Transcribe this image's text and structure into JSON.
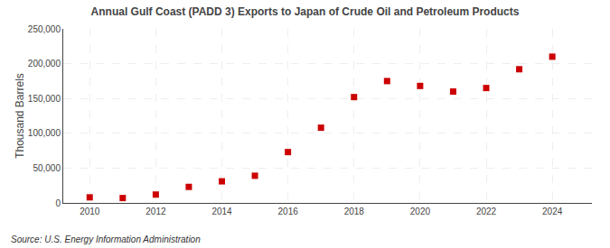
{
  "chart_data": {
    "type": "scatter",
    "title": "Annual Gulf Coast (PADD 3) Exports to Japan of Crude Oil and Petroleum Products",
    "ylabel": "Thousand Barrels",
    "annotations": [
      "Source: U.S. Energy Information Administration"
    ],
    "x": [
      2010,
      2011,
      2012,
      2013,
      2014,
      2015,
      2016,
      2017,
      2018,
      2019,
      2020,
      2021,
      2022,
      2023,
      2024
    ],
    "values": [
      8000,
      7000,
      12000,
      23000,
      31000,
      39000,
      73000,
      108000,
      152000,
      175000,
      168000,
      160000,
      165000,
      192000,
      210000
    ],
    "color": "#cc0000",
    "marker": "square",
    "xlim": [
      2009.2,
      2025.2
    ],
    "xticks": [
      2010,
      2012,
      2014,
      2016,
      2018,
      2020,
      2022,
      2024
    ],
    "ylim": [
      0,
      250000
    ],
    "yticks": [
      0,
      {
        "value": 50000,
        "label": "50,000"
      },
      {
        "value": 100000,
        "label": "100,000"
      },
      {
        "value": 150000,
        "label": "150,000"
      },
      {
        "value": 200000,
        "label": "200,000"
      },
      {
        "value": 250000,
        "label": "250,000"
      }
    ],
    "grid": true
  }
}
